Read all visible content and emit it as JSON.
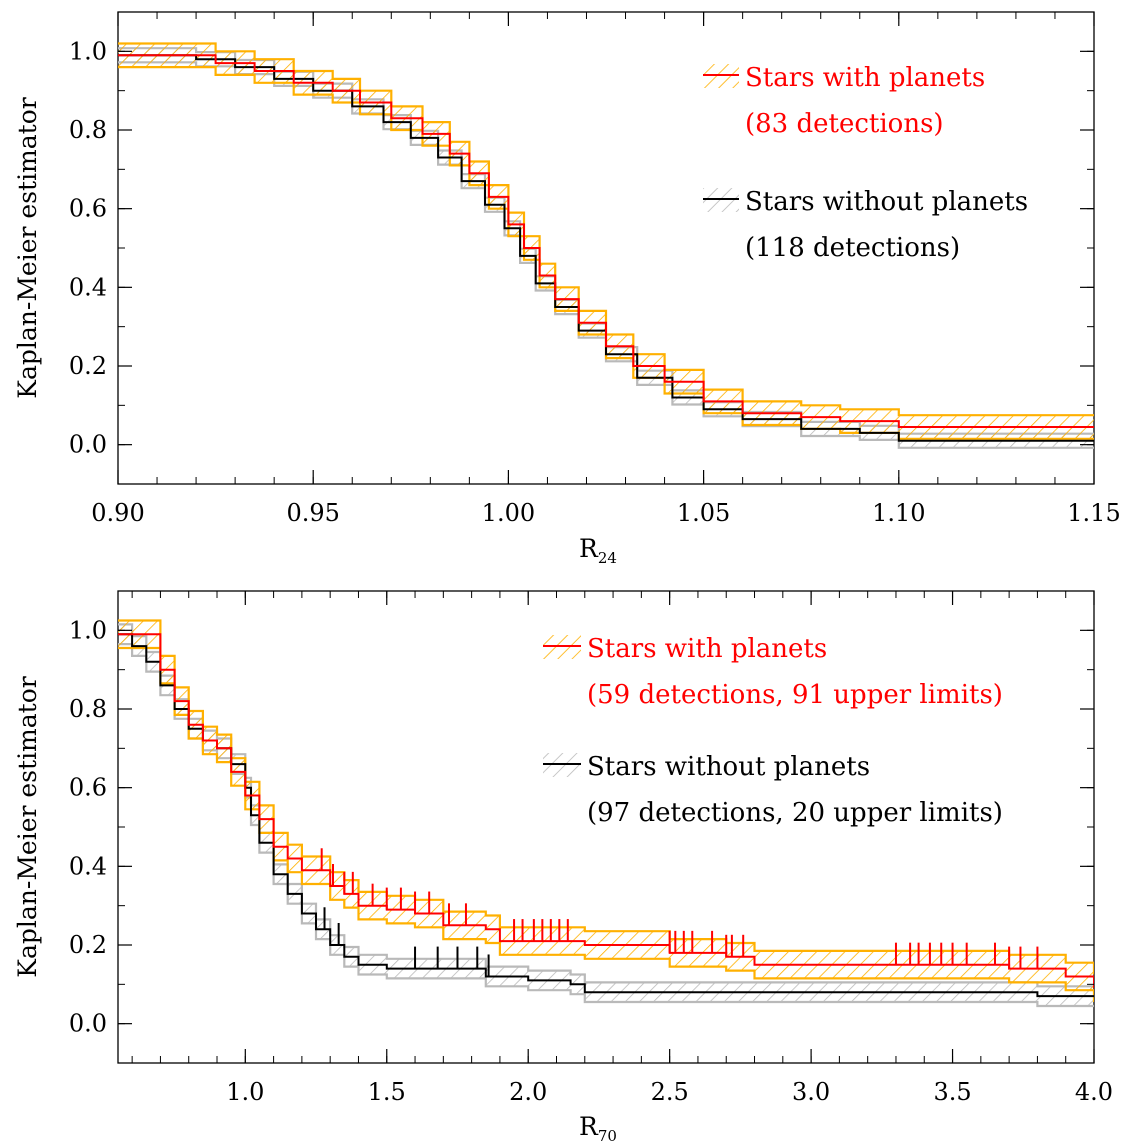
{
  "colors": {
    "planets_line": "#ff0000",
    "planets_band": "#ffb000",
    "noplanets_line": "#000000",
    "noplanets_band": "#b9b9b9"
  },
  "chart_data": [
    {
      "type": "line",
      "subtype": "step",
      "xlabel": "R",
      "xlabel_sub": "24",
      "ylabel": "Kaplan-Meier estimator",
      "xlim": [
        0.9,
        1.15
      ],
      "ylim": [
        -0.1,
        1.1
      ],
      "xticks": [
        0.9,
        0.95,
        1.0,
        1.05,
        1.1,
        1.15
      ],
      "xtick_labels": [
        "0.90",
        "0.95",
        "1.00",
        "1.05",
        "1.10",
        "1.15"
      ],
      "yticks": [
        0.0,
        0.2,
        0.4,
        0.6,
        0.8,
        1.0
      ],
      "ytick_labels": [
        "0.0",
        "0.2",
        "0.4",
        "0.6",
        "0.8",
        "1.0"
      ],
      "legend_position": "top-right",
      "series": [
        {
          "legend": [
            "Stars with planets",
            "(83 detections)"
          ],
          "color": "#ff0000",
          "band_color": "#ffb000",
          "band_halfwidth": 0.03,
          "upper_limits": [],
          "points": [
            [
              0.9,
              0.99
            ],
            [
              0.915,
              0.99
            ],
            [
              0.925,
              0.97
            ],
            [
              0.935,
              0.95
            ],
            [
              0.945,
              0.92
            ],
            [
              0.955,
              0.9
            ],
            [
              0.962,
              0.87
            ],
            [
              0.97,
              0.83
            ],
            [
              0.978,
              0.79
            ],
            [
              0.985,
              0.74
            ],
            [
              0.99,
              0.69
            ],
            [
              0.995,
              0.63
            ],
            [
              1.0,
              0.56
            ],
            [
              1.004,
              0.5
            ],
            [
              1.008,
              0.43
            ],
            [
              1.012,
              0.37
            ],
            [
              1.018,
              0.31
            ],
            [
              1.025,
              0.25
            ],
            [
              1.032,
              0.2
            ],
            [
              1.04,
              0.16
            ],
            [
              1.05,
              0.11
            ],
            [
              1.06,
              0.08
            ],
            [
              1.075,
              0.07
            ],
            [
              1.085,
              0.06
            ],
            [
              1.1,
              0.045
            ],
            [
              1.15,
              0.045
            ]
          ]
        },
        {
          "legend": [
            "Stars without planets",
            "(118 detections)"
          ],
          "color": "#000000",
          "band_color": "#b9b9b9",
          "band_halfwidth": 0.018,
          "upper_limits": [],
          "points": [
            [
              0.9,
              0.99
            ],
            [
              0.92,
              0.98
            ],
            [
              0.93,
              0.96
            ],
            [
              0.94,
              0.93
            ],
            [
              0.95,
              0.9
            ],
            [
              0.96,
              0.86
            ],
            [
              0.968,
              0.82
            ],
            [
              0.975,
              0.78
            ],
            [
              0.982,
              0.73
            ],
            [
              0.988,
              0.67
            ],
            [
              0.994,
              0.61
            ],
            [
              0.999,
              0.55
            ],
            [
              1.003,
              0.48
            ],
            [
              1.007,
              0.41
            ],
            [
              1.012,
              0.35
            ],
            [
              1.018,
              0.29
            ],
            [
              1.025,
              0.23
            ],
            [
              1.033,
              0.17
            ],
            [
              1.042,
              0.12
            ],
            [
              1.05,
              0.09
            ],
            [
              1.06,
              0.065
            ],
            [
              1.075,
              0.04
            ],
            [
              1.09,
              0.03
            ],
            [
              1.1,
              0.01
            ],
            [
              1.15,
              0.01
            ]
          ]
        }
      ]
    },
    {
      "type": "line",
      "subtype": "step",
      "xlabel": "R",
      "xlabel_sub": "70",
      "ylabel": "Kaplan-Meier estimator",
      "xlim": [
        0.55,
        4.0
      ],
      "ylim": [
        -0.1,
        1.1
      ],
      "xticks": [
        1.0,
        1.5,
        2.0,
        2.5,
        3.0,
        3.5,
        4.0
      ],
      "xtick_labels": [
        "1.0",
        "1.5",
        "2.0",
        "2.5",
        "3.0",
        "3.5",
        "4.0"
      ],
      "yticks": [
        0.0,
        0.2,
        0.4,
        0.6,
        0.8,
        1.0
      ],
      "ytick_labels": [
        "0.0",
        "0.2",
        "0.4",
        "0.6",
        "0.8",
        "1.0"
      ],
      "legend_position": "top-right",
      "series": [
        {
          "legend": [
            "Stars with planets",
            "(59 detections, 91 upper limits)"
          ],
          "color": "#ff0000",
          "band_color": "#ffb000",
          "band_halfwidth": 0.035,
          "points": [
            [
              0.55,
              0.99
            ],
            [
              0.65,
              0.99
            ],
            [
              0.7,
              0.9
            ],
            [
              0.75,
              0.82
            ],
            [
              0.8,
              0.76
            ],
            [
              0.85,
              0.72
            ],
            [
              0.9,
              0.7
            ],
            [
              0.95,
              0.64
            ],
            [
              1.0,
              0.58
            ],
            [
              1.05,
              0.52
            ],
            [
              1.1,
              0.45
            ],
            [
              1.15,
              0.42
            ],
            [
              1.2,
              0.39
            ],
            [
              1.3,
              0.35
            ],
            [
              1.35,
              0.33
            ],
            [
              1.4,
              0.3
            ],
            [
              1.5,
              0.29
            ],
            [
              1.6,
              0.28
            ],
            [
              1.7,
              0.25
            ],
            [
              1.85,
              0.24
            ],
            [
              1.9,
              0.21
            ],
            [
              2.0,
              0.21
            ],
            [
              2.2,
              0.2
            ],
            [
              2.5,
              0.18
            ],
            [
              2.7,
              0.17
            ],
            [
              2.8,
              0.15
            ],
            [
              3.0,
              0.15
            ],
            [
              3.7,
              0.14
            ],
            [
              3.9,
              0.12
            ],
            [
              4.0,
              0.09
            ]
          ],
          "upper_limits": [
            1.27,
            1.31,
            1.35,
            1.38,
            1.45,
            1.5,
            1.55,
            1.6,
            1.65,
            1.72,
            1.78,
            1.95,
            1.98,
            2.02,
            2.05,
            2.08,
            2.11,
            2.14,
            2.5,
            2.52,
            2.55,
            2.58,
            2.65,
            2.7,
            2.72,
            2.76,
            3.3,
            3.35,
            3.38,
            3.42,
            3.46,
            3.5,
            3.55,
            3.65,
            3.7,
            3.74,
            3.8
          ]
        },
        {
          "legend": [
            "Stars without planets",
            "(97 detections, 20 upper limits)"
          ],
          "color": "#000000",
          "band_color": "#b9b9b9",
          "band_halfwidth": 0.025,
          "points": [
            [
              0.55,
              0.99
            ],
            [
              0.6,
              0.96
            ],
            [
              0.65,
              0.92
            ],
            [
              0.7,
              0.86
            ],
            [
              0.75,
              0.8
            ],
            [
              0.8,
              0.75
            ],
            [
              0.85,
              0.72
            ],
            [
              0.9,
              0.7
            ],
            [
              0.95,
              0.66
            ],
            [
              1.0,
              0.6
            ],
            [
              1.02,
              0.53
            ],
            [
              1.05,
              0.46
            ],
            [
              1.1,
              0.38
            ],
            [
              1.15,
              0.33
            ],
            [
              1.2,
              0.28
            ],
            [
              1.25,
              0.24
            ],
            [
              1.3,
              0.2
            ],
            [
              1.35,
              0.17
            ],
            [
              1.4,
              0.15
            ],
            [
              1.5,
              0.14
            ],
            [
              1.85,
              0.12
            ],
            [
              2.0,
              0.11
            ],
            [
              2.15,
              0.1
            ],
            [
              2.2,
              0.08
            ],
            [
              3.0,
              0.08
            ],
            [
              3.8,
              0.07
            ],
            [
              4.0,
              0.07
            ]
          ],
          "upper_limits": [
            1.28,
            1.33,
            1.6,
            1.68,
            1.75,
            1.82,
            1.86
          ]
        }
      ]
    }
  ]
}
